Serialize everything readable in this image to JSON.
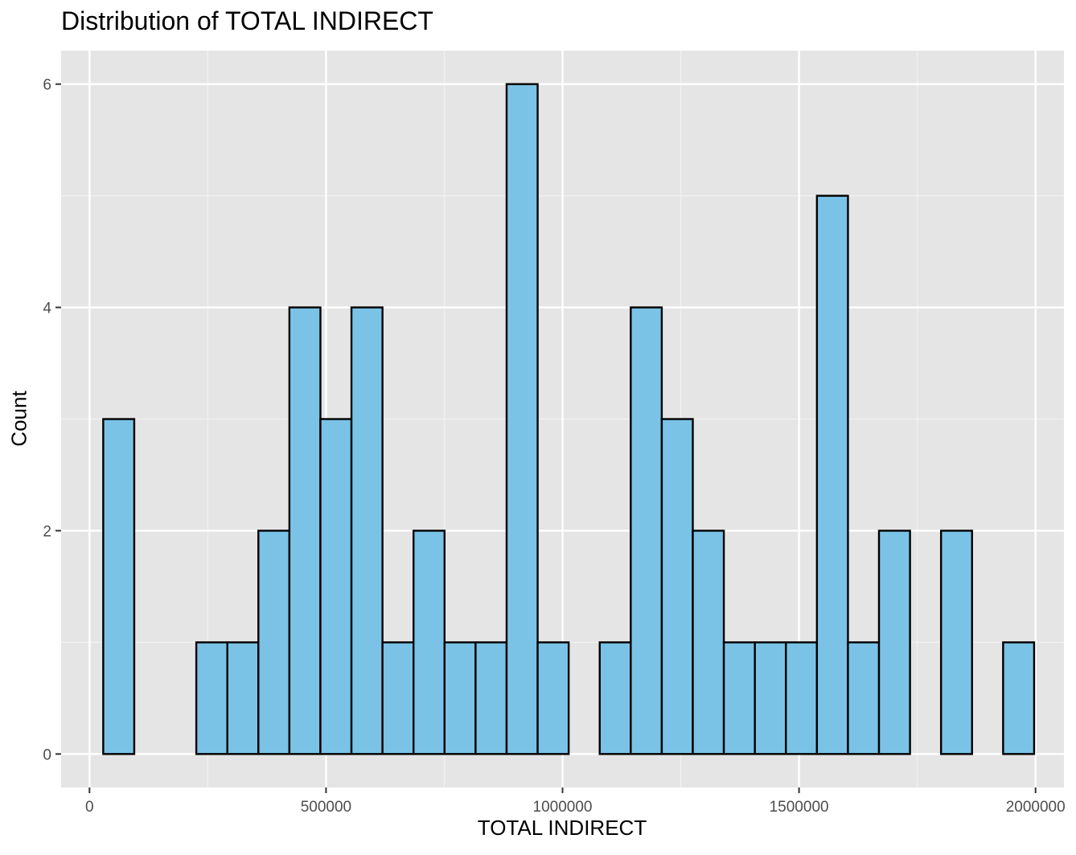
{
  "chart_data": {
    "type": "bar",
    "title": "Distribution of TOTAL INDIRECT",
    "xlabel": "TOTAL INDIRECT",
    "ylabel": "Count",
    "xlim": [
      -60000,
      2060000
    ],
    "ylim": [
      -0.3,
      6.3
    ],
    "x_ticks": [
      0,
      500000,
      1000000,
      1500000,
      2000000
    ],
    "x_tick_labels": [
      "0",
      "500000",
      "1000000",
      "1500000",
      "2000000"
    ],
    "y_ticks": [
      0,
      2,
      4,
      6
    ],
    "y_tick_labels": [
      "0",
      "2",
      "4",
      "6"
    ],
    "grid": true,
    "bin_width": 65600,
    "bin_start": 29000,
    "bin_counts": [
      3,
      0,
      0,
      1,
      1,
      2,
      4,
      3,
      4,
      1,
      2,
      1,
      1,
      6,
      1,
      0,
      1,
      4,
      3,
      2,
      1,
      1,
      1,
      5,
      1,
      2,
      0,
      2,
      0,
      1
    ],
    "colors": {
      "fill": "#7bc3e6",
      "outline": "#000000",
      "panel": "#e5e5e5",
      "grid_major": "#ffffff",
      "grid_minor": "#f2f2f2",
      "tick_text": "#4d4d4d",
      "tick_mark": "#333333"
    }
  }
}
